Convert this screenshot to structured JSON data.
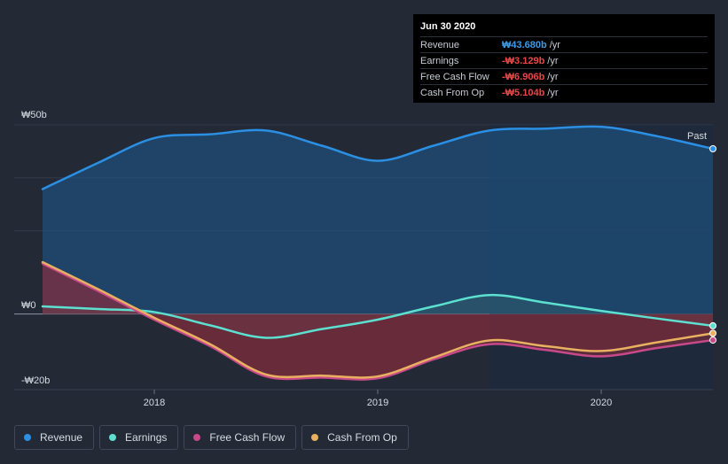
{
  "tooltip": {
    "title": "Jun 30 2020",
    "rows": [
      {
        "label": "Revenue",
        "value": "₩43.680b",
        "unit": "/yr",
        "color": "#3d9be9"
      },
      {
        "label": "Earnings",
        "value": "-₩3.129b",
        "unit": "/yr",
        "color": "#e64848"
      },
      {
        "label": "Free Cash Flow",
        "value": "-₩6.906b",
        "unit": "/yr",
        "color": "#e64848"
      },
      {
        "label": "Cash From Op",
        "value": "-₩5.104b",
        "unit": "/yr",
        "color": "#e64848"
      }
    ]
  },
  "legend": [
    {
      "label": "Revenue",
      "color": "#2b8fe3"
    },
    {
      "label": "Earnings",
      "color": "#5ce0d0"
    },
    {
      "label": "Free Cash Flow",
      "color": "#c8498a"
    },
    {
      "label": "Cash From Op",
      "color": "#e8b060"
    }
  ],
  "past_label": "Past",
  "chart_data": {
    "type": "line",
    "y_unit_label_top": "₩50b",
    "y_unit_label_zero": "₩0",
    "y_unit_label_bottom": "-₩20b",
    "ylim": [
      -20,
      50
    ],
    "y_ticks": [
      50,
      0,
      -20
    ],
    "xlim": [
      2017.5,
      2020.5
    ],
    "x_ticks": [
      {
        "value": 2018.0,
        "label": "2018"
      },
      {
        "value": 2019.0,
        "label": "2019"
      },
      {
        "value": 2020.0,
        "label": "2020"
      }
    ],
    "future_shade_start": 2019.5,
    "series": [
      {
        "name": "Revenue",
        "color": "#2b8fe3",
        "x": [
          2017.5,
          2017.75,
          2018.0,
          2018.25,
          2018.5,
          2018.75,
          2019.0,
          2019.25,
          2019.5,
          2019.75,
          2020.0,
          2020.25,
          2020.5
        ],
        "y": [
          33,
          40,
          46.5,
          47.5,
          48.5,
          44.5,
          40.5,
          44.5,
          48.5,
          49,
          49.5,
          47,
          43.68
        ]
      },
      {
        "name": "Earnings",
        "color": "#5ce0d0",
        "x": [
          2017.5,
          2017.75,
          2018.0,
          2018.25,
          2018.5,
          2018.75,
          2019.0,
          2019.25,
          2019.5,
          2019.75,
          2020.0,
          2020.25,
          2020.5
        ],
        "y": [
          2,
          1.3,
          0.5,
          -3,
          -6.3,
          -4,
          -1.5,
          2,
          5,
          3,
          0.8,
          -1.2,
          -3.129
        ]
      },
      {
        "name": "Free Cash Flow",
        "color": "#c8498a",
        "x": [
          2017.5,
          2017.75,
          2018.0,
          2018.25,
          2018.5,
          2018.75,
          2019.0,
          2019.25,
          2019.5,
          2019.75,
          2020.0,
          2020.25,
          2020.5
        ],
        "y": [
          13.3,
          6,
          -1.5,
          -8.5,
          -16.5,
          -16.8,
          -17,
          -12,
          -8,
          -9.5,
          -11.2,
          -9,
          -6.906
        ]
      },
      {
        "name": "Cash From Op",
        "color": "#e8b060",
        "x": [
          2017.5,
          2017.75,
          2018.0,
          2018.25,
          2018.5,
          2018.75,
          2019.0,
          2019.25,
          2019.5,
          2019.75,
          2020.0,
          2020.25,
          2020.5
        ],
        "y": [
          13.7,
          6.5,
          -1,
          -8,
          -16,
          -16.3,
          -16.5,
          -11.5,
          -7,
          -8.5,
          -9.8,
          -7.5,
          -5.104
        ]
      }
    ]
  }
}
